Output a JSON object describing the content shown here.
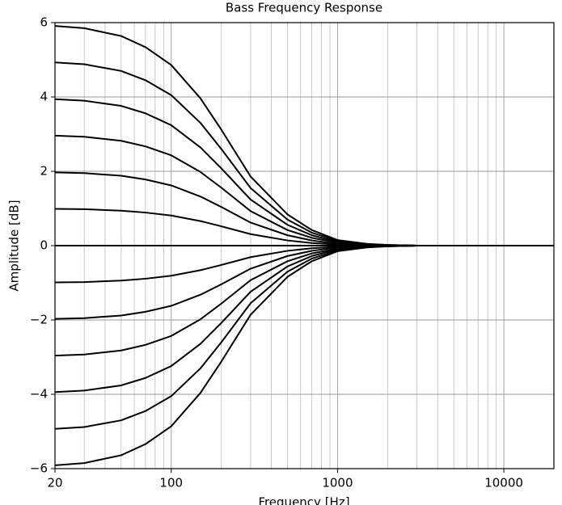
{
  "chart_data": {
    "type": "line",
    "title": "Bass Frequency Response",
    "xlabel": "Frequency [Hz]",
    "ylabel": "Amplitude [dB]",
    "xscale": "log",
    "grid": true,
    "color": "#000000",
    "x": [
      20,
      30,
      50,
      70,
      100,
      150,
      200,
      300,
      500,
      700,
      1000,
      1500,
      2000,
      3000,
      5000,
      10000,
      20000
    ],
    "series": [
      {
        "values": [
          5.91,
          5.85,
          5.64,
          5.34,
          4.86,
          3.96,
          3.12,
          1.86,
          0.84,
          0.42,
          0.15,
          0.05,
          0.02,
          0,
          0,
          0,
          0
        ]
      },
      {
        "values": [
          4.93,
          4.88,
          4.7,
          4.45,
          4.05,
          3.3,
          2.6,
          1.55,
          0.7,
          0.35,
          0.13,
          0.04,
          0.02,
          0,
          0,
          0,
          0
        ]
      },
      {
        "values": [
          3.94,
          3.9,
          3.76,
          3.56,
          3.24,
          2.64,
          2.08,
          1.24,
          0.56,
          0.28,
          0.1,
          0.03,
          0.01,
          0,
          0,
          0,
          0
        ]
      },
      {
        "values": [
          2.96,
          2.93,
          2.82,
          2.67,
          2.43,
          1.98,
          1.56,
          0.93,
          0.42,
          0.21,
          0.08,
          0.02,
          0.01,
          0,
          0,
          0,
          0
        ]
      },
      {
        "values": [
          1.97,
          1.95,
          1.88,
          1.78,
          1.62,
          1.32,
          1.04,
          0.62,
          0.28,
          0.14,
          0.05,
          0.02,
          0.01,
          0,
          0,
          0,
          0
        ]
      },
      {
        "values": [
          0.99,
          0.98,
          0.94,
          0.89,
          0.81,
          0.66,
          0.52,
          0.31,
          0.14,
          0.07,
          0.03,
          0.01,
          0,
          0,
          0,
          0,
          0
        ]
      },
      {
        "values": [
          0,
          0,
          0,
          0,
          0,
          0,
          0,
          0,
          0,
          0,
          0,
          0,
          0,
          0,
          0,
          0,
          0
        ]
      },
      {
        "values": [
          -0.99,
          -0.98,
          -0.94,
          -0.89,
          -0.81,
          -0.66,
          -0.52,
          -0.31,
          -0.14,
          -0.07,
          -0.03,
          -0.01,
          0,
          0,
          0,
          0,
          0
        ]
      },
      {
        "values": [
          -1.97,
          -1.95,
          -1.88,
          -1.78,
          -1.62,
          -1.32,
          -1.04,
          -0.62,
          -0.28,
          -0.14,
          -0.05,
          -0.02,
          -0.01,
          0,
          0,
          0,
          0
        ]
      },
      {
        "values": [
          -2.96,
          -2.93,
          -2.82,
          -2.67,
          -2.43,
          -1.98,
          -1.56,
          -0.93,
          -0.42,
          -0.21,
          -0.08,
          -0.02,
          -0.01,
          0,
          0,
          0,
          0
        ]
      },
      {
        "values": [
          -3.94,
          -3.9,
          -3.76,
          -3.56,
          -3.24,
          -2.64,
          -2.08,
          -1.24,
          -0.56,
          -0.28,
          -0.1,
          -0.03,
          -0.01,
          0,
          0,
          0,
          0
        ]
      },
      {
        "values": [
          -4.93,
          -4.88,
          -4.7,
          -4.45,
          -4.05,
          -3.3,
          -2.6,
          -1.55,
          -0.7,
          -0.35,
          -0.13,
          -0.04,
          -0.02,
          0,
          0,
          0,
          0
        ]
      },
      {
        "values": [
          -5.91,
          -5.85,
          -5.64,
          -5.34,
          -4.86,
          -3.96,
          -3.12,
          -1.86,
          -0.84,
          -0.42,
          -0.15,
          -0.05,
          -0.02,
          0,
          0,
          0,
          0
        ]
      }
    ],
    "xlim": [
      20,
      20000
    ],
    "xticks": [
      20,
      100,
      1000,
      10000
    ],
    "xminorticks": [
      30,
      40,
      50,
      60,
      70,
      80,
      90,
      200,
      300,
      400,
      500,
      600,
      700,
      800,
      900,
      2000,
      3000,
      4000,
      5000,
      6000,
      7000,
      8000,
      9000
    ],
    "ylim": [
      -6,
      6
    ],
    "yticks": [
      {
        "value": -6,
        "label": "−6"
      },
      {
        "value": -4,
        "label": "−4"
      },
      {
        "value": -2,
        "label": "−2"
      },
      0,
      2,
      4,
      6
    ]
  }
}
